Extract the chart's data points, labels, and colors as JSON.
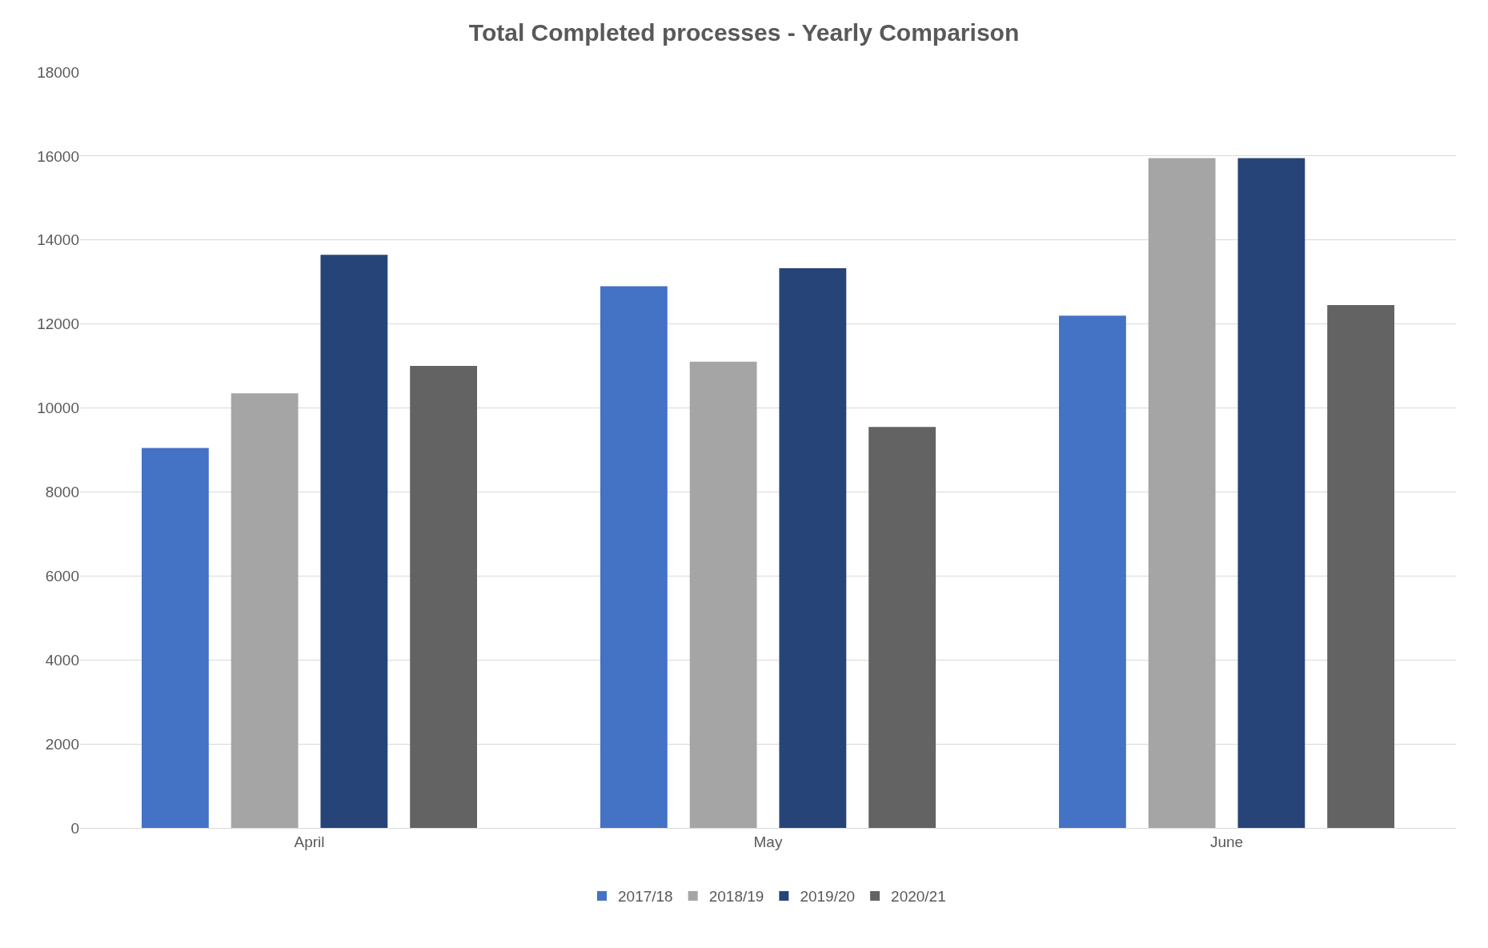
{
  "chart_data": {
    "type": "bar",
    "title": "Total Completed processes - Yearly Comparison",
    "categories": [
      "April",
      "May",
      "June"
    ],
    "series": [
      {
        "name": "2017/18",
        "color": "#4472c4",
        "values": [
          9050,
          12900,
          12200
        ]
      },
      {
        "name": "2018/19",
        "color": "#a5a5a5",
        "values": [
          10350,
          11100,
          15950
        ]
      },
      {
        "name": "2019/20",
        "color": "#264478",
        "values": [
          13650,
          13330,
          15950
        ]
      },
      {
        "name": "2020/21",
        "color": "#636363",
        "values": [
          11000,
          9550,
          12450
        ]
      }
    ],
    "ylim": [
      0,
      18000
    ],
    "yticks": [
      0,
      2000,
      4000,
      6000,
      8000,
      10000,
      12000,
      14000,
      16000,
      18000
    ],
    "grid": "y",
    "legend": "bottom"
  }
}
